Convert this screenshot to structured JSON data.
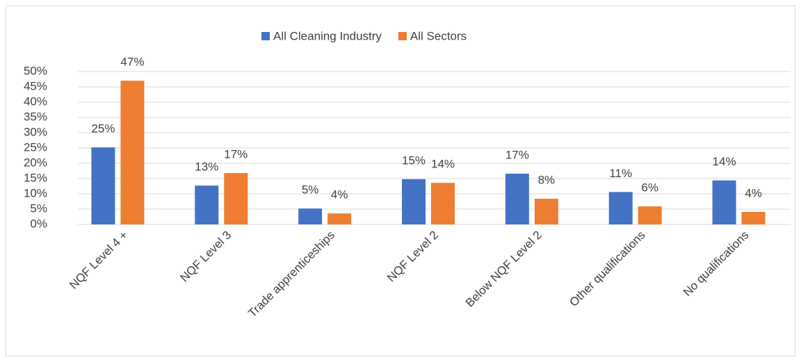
{
  "chart_data": {
    "type": "bar",
    "categories": [
      "NQF Level 4 +",
      "NQF Level 3",
      "Trade apprenticeships",
      "NQF Level 2",
      "Below NQF Level 2",
      "Other qualifications",
      "No qualifications"
    ],
    "series": [
      {
        "name": "All Cleaning Industry",
        "color": "#4472c4",
        "values": [
          25.2,
          12.7,
          5.2,
          14.8,
          16.6,
          10.6,
          14.4
        ],
        "value_labels": [
          "25%",
          "13%",
          "5%",
          "15%",
          "17%",
          "11%",
          "14%"
        ]
      },
      {
        "name": "All Sectors",
        "color": "#ed7d31",
        "values": [
          47.0,
          16.8,
          3.6,
          13.6,
          8.4,
          5.9,
          4.1
        ],
        "value_labels": [
          "47%",
          "17%",
          "4%",
          "14%",
          "8%",
          "6%",
          "4%"
        ]
      }
    ],
    "ylim": [
      0,
      50
    ],
    "yticks": [
      {
        "value": 0,
        "label": "0%"
      },
      {
        "value": 5,
        "label": "5%"
      },
      {
        "value": 10,
        "label": "10%"
      },
      {
        "value": 15,
        "label": "15%"
      },
      {
        "value": 20,
        "label": "20%"
      },
      {
        "value": 25,
        "label": "25%"
      },
      {
        "value": 30,
        "label": "30%"
      },
      {
        "value": 35,
        "label": "35%"
      },
      {
        "value": 40,
        "label": "40%"
      },
      {
        "value": 45,
        "label": "45%"
      },
      {
        "value": 50,
        "label": "50%"
      }
    ],
    "grid": true,
    "legend": "top"
  }
}
